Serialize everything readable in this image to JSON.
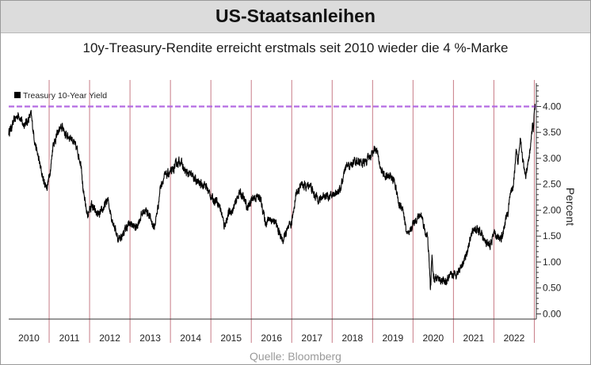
{
  "header": {
    "title": "US-Staatsanleihen",
    "subtitle": "10y-Treasury-Rendite erreicht erstmals seit 2010 wieder die 4 %-Marke",
    "source": "Quelle: Bloomberg"
  },
  "colors": {
    "line": "#000000",
    "reference_line": "#b36ae2",
    "year_separator": "#c77b86",
    "axis": "#333333",
    "header_bg": "#dcdcdc"
  },
  "chart_data": {
    "type": "line",
    "title": "10y-Treasury-Rendite erreicht erstmals seit 2010 wieder die 4 %-Marke",
    "xlabel": "",
    "ylabel": "Percent",
    "legend": {
      "label": "Treasury 10-Year Yield",
      "position": "top-left"
    },
    "ylim": [
      -0.1,
      4.45
    ],
    "xlim": [
      2009.75,
      2022.8
    ],
    "yticks": [
      0.0,
      0.5,
      1.0,
      1.5,
      2.0,
      2.5,
      3.0,
      3.5,
      4.0
    ],
    "ytick_labels": [
      "0.00",
      "0.50",
      "1.00",
      "1.50",
      "2.00",
      "2.50",
      "3.00",
      "3.50",
      "4.00"
    ],
    "xtick_labels": [
      "2010",
      "2011",
      "2012",
      "2013",
      "2014",
      "2015",
      "2016",
      "2017",
      "2018",
      "2019",
      "2020",
      "2021",
      "2022"
    ],
    "reference_line": {
      "y": 4.0,
      "style": "dashed"
    },
    "series": [
      {
        "name": "Treasury 10-Year Yield",
        "x": [
          2009.75,
          2009.82,
          2009.9,
          2010.0,
          2010.1,
          2010.2,
          2010.3,
          2010.4,
          2010.5,
          2010.6,
          2010.65,
          2010.7,
          2010.75,
          2010.8,
          2010.85,
          2010.9,
          2011.0,
          2011.1,
          2011.15,
          2011.3,
          2011.45,
          2011.55,
          2011.6,
          2011.7,
          2011.8,
          2011.9,
          2012.0,
          2012.1,
          2012.2,
          2012.3,
          2012.4,
          2012.45,
          2012.55,
          2012.65,
          2012.75,
          2012.9,
          2013.0,
          2013.1,
          2013.2,
          2013.3,
          2013.35,
          2013.45,
          2013.5,
          2013.6,
          2013.7,
          2013.8,
          2013.9,
          2014.0,
          2014.1,
          2014.2,
          2014.3,
          2014.4,
          2014.5,
          2014.6,
          2014.7,
          2014.8,
          2014.9,
          2015.0,
          2015.08,
          2015.2,
          2015.3,
          2015.45,
          2015.55,
          2015.65,
          2015.8,
          2015.95,
          2016.0,
          2016.1,
          2016.2,
          2016.35,
          2016.45,
          2016.53,
          2016.6,
          2016.75,
          2016.85,
          2016.95,
          2017.0,
          2017.1,
          2017.2,
          2017.3,
          2017.45,
          2017.55,
          2017.7,
          2017.85,
          2017.95,
          2018.0,
          2018.1,
          2018.2,
          2018.3,
          2018.4,
          2018.5,
          2018.6,
          2018.7,
          2018.8,
          2018.85,
          2018.95,
          2019.05,
          2019.2,
          2019.3,
          2019.4,
          2019.5,
          2019.58,
          2019.65,
          2019.75,
          2019.85,
          2019.95,
          2020.0,
          2020.05,
          2020.1,
          2020.15,
          2020.18,
          2020.2,
          2020.22,
          2020.25,
          2020.3,
          2020.35,
          2020.45,
          2020.55,
          2020.65,
          2020.75,
          2020.85,
          2020.95,
          2021.05,
          2021.15,
          2021.25,
          2021.35,
          2021.45,
          2021.55,
          2021.65,
          2021.75,
          2021.85,
          2021.95,
          2022.0,
          2022.05,
          2022.1,
          2022.15,
          2022.2,
          2022.25,
          2022.3,
          2022.35,
          2022.4,
          2022.45,
          2022.5,
          2022.55,
          2022.6,
          2022.65,
          2022.7,
          2022.73,
          2022.75,
          2022.77
        ],
        "values": [
          3.5,
          3.6,
          3.75,
          3.85,
          3.65,
          3.7,
          3.85,
          3.3,
          2.95,
          2.6,
          2.5,
          2.45,
          2.65,
          2.9,
          3.3,
          3.35,
          3.55,
          3.6,
          3.45,
          3.4,
          3.15,
          2.85,
          2.3,
          1.9,
          2.1,
          1.95,
          1.9,
          2.05,
          2.2,
          1.85,
          1.6,
          1.45,
          1.5,
          1.65,
          1.75,
          1.65,
          1.85,
          2.0,
          1.95,
          1.75,
          1.65,
          2.1,
          2.45,
          2.65,
          2.7,
          2.75,
          2.9,
          2.95,
          2.75,
          2.7,
          2.65,
          2.55,
          2.5,
          2.5,
          2.35,
          2.2,
          2.2,
          2.0,
          1.7,
          1.95,
          2.0,
          2.35,
          2.25,
          2.05,
          2.25,
          2.25,
          2.15,
          1.75,
          1.85,
          1.75,
          1.55,
          1.4,
          1.55,
          1.75,
          2.3,
          2.45,
          2.5,
          2.45,
          2.5,
          2.3,
          2.2,
          2.3,
          2.25,
          2.35,
          2.4,
          2.55,
          2.85,
          2.85,
          2.95,
          2.95,
          2.9,
          2.95,
          3.05,
          3.2,
          3.15,
          2.8,
          2.65,
          2.65,
          2.55,
          2.1,
          2.05,
          1.6,
          1.5,
          1.75,
          1.85,
          1.9,
          1.8,
          1.55,
          1.55,
          1.0,
          0.45,
          0.75,
          1.15,
          0.7,
          0.65,
          0.7,
          0.65,
          0.6,
          0.7,
          0.75,
          0.8,
          0.95,
          1.1,
          1.4,
          1.65,
          1.6,
          1.55,
          1.35,
          1.3,
          1.55,
          1.45,
          1.5,
          1.65,
          1.85,
          1.95,
          2.35,
          2.35,
          2.6,
          3.1,
          2.9,
          3.45,
          3.1,
          2.75,
          2.65,
          2.9,
          3.2,
          3.6,
          3.55,
          3.95,
          4.05
        ]
      }
    ]
  }
}
